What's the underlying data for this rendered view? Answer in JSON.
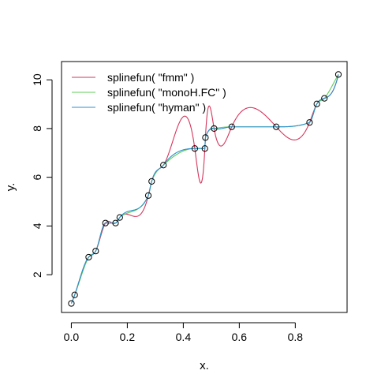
{
  "chart_data": {
    "type": "line",
    "xlabel": "x.",
    "ylabel": "y.",
    "xlim": [
      -0.035,
      0.985
    ],
    "ylim": [
      0.45,
      10.75
    ],
    "x_ticks": [
      "0.0",
      "0.2",
      "0.4",
      "0.6",
      "0.8"
    ],
    "x_tick_values": [
      0.0,
      0.2,
      0.4,
      0.6,
      0.8
    ],
    "y_ticks": [
      "2",
      "4",
      "6",
      "8",
      "10"
    ],
    "y_tick_values": [
      2,
      4,
      6,
      8,
      10
    ],
    "legend_position": "top-left",
    "points": [
      {
        "x": 0.0,
        "y": 0.82
      },
      {
        "x": 0.012,
        "y": 1.17
      },
      {
        "x": 0.062,
        "y": 2.72
      },
      {
        "x": 0.087,
        "y": 2.97
      },
      {
        "x": 0.122,
        "y": 4.12
      },
      {
        "x": 0.158,
        "y": 4.12
      },
      {
        "x": 0.173,
        "y": 4.35
      },
      {
        "x": 0.275,
        "y": 5.25
      },
      {
        "x": 0.287,
        "y": 5.83
      },
      {
        "x": 0.329,
        "y": 6.5
      },
      {
        "x": 0.441,
        "y": 7.18
      },
      {
        "x": 0.477,
        "y": 7.18
      },
      {
        "x": 0.479,
        "y": 7.63
      },
      {
        "x": 0.51,
        "y": 8.0
      },
      {
        "x": 0.573,
        "y": 8.07
      },
      {
        "x": 0.732,
        "y": 8.07
      },
      {
        "x": 0.851,
        "y": 8.25
      },
      {
        "x": 0.877,
        "y": 9.01
      },
      {
        "x": 0.904,
        "y": 9.24
      },
      {
        "x": 0.954,
        "y": 10.22
      }
    ],
    "series": [
      {
        "name": "splinefun( \"fmm\" )",
        "color": "#d4365c",
        "method": "fmm"
      },
      {
        "name": "splinefun( \"monoH.FC\" )",
        "color": "#5fcd5a",
        "method": "monoH.FC"
      },
      {
        "name": "splinefun( \"hyman\" )",
        "color": "#2b8fcf",
        "method": "hyman"
      }
    ]
  }
}
